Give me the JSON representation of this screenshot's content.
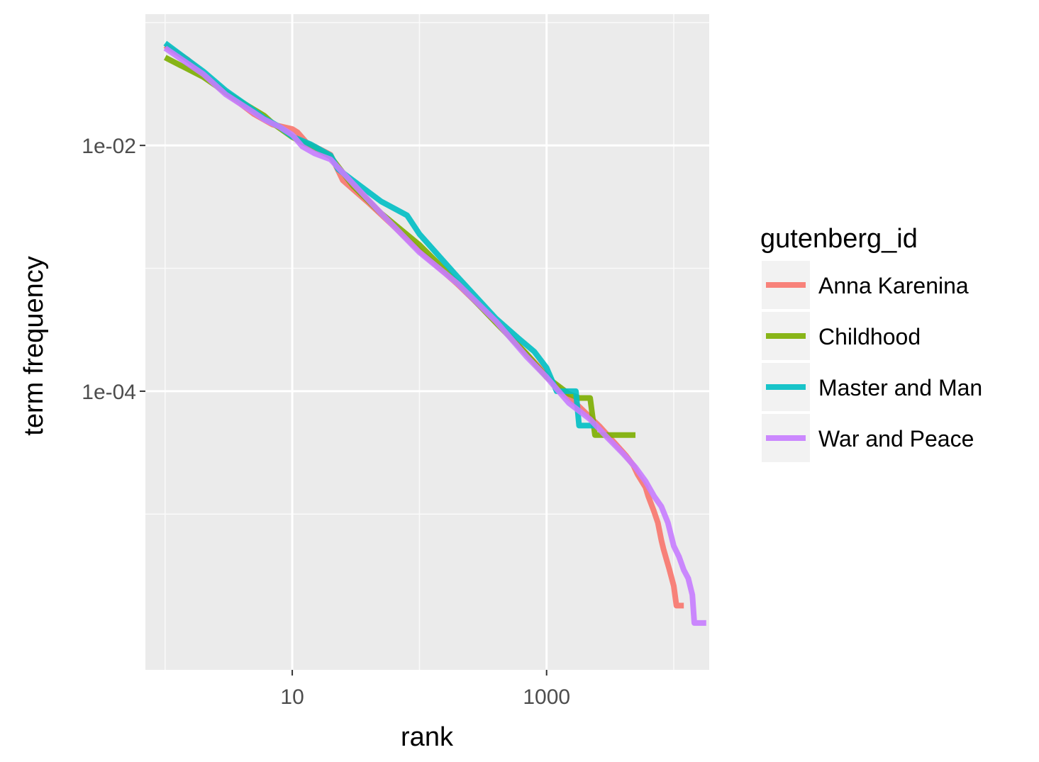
{
  "chart_data": {
    "type": "line",
    "title": "",
    "xlabel": "rank",
    "ylabel": "term frequency",
    "x_scale": "log10",
    "y_scale": "log10",
    "xlim": [
      0.7,
      19000
    ],
    "ylim": [
      5.4e-07,
      0.117
    ],
    "x_ticks": [
      {
        "value": 10,
        "label": "10"
      },
      {
        "value": 1000,
        "label": "1000"
      }
    ],
    "y_ticks": [
      {
        "value": 0.01,
        "label": "1e-02"
      },
      {
        "value": 0.0001,
        "label": "1e-04"
      }
    ],
    "x_minor": [
      1,
      100,
      10000
    ],
    "y_minor": [
      0.1,
      0.001,
      1e-05
    ],
    "grid": true,
    "background": "#ebebeb",
    "legend": {
      "title": "gutenberg_id",
      "position": "right",
      "entries": [
        "Anna Karenina",
        "Childhood",
        "Master and Man",
        "War and Peace"
      ]
    },
    "series": [
      {
        "name": "Anna Karenina",
        "color": "#f8766d",
        "points": [
          [
            1,
            0.065
          ],
          [
            1.5,
            0.05
          ],
          [
            2,
            0.038
          ],
          [
            3,
            0.027
          ],
          [
            5,
            0.018
          ],
          [
            7,
            0.0148
          ],
          [
            10,
            0.0136
          ],
          [
            11,
            0.0128
          ],
          [
            13,
            0.0105
          ],
          [
            15,
            0.0098
          ],
          [
            20,
            0.0084
          ],
          [
            25,
            0.0052
          ],
          [
            40,
            0.0034
          ],
          [
            60,
            0.0023
          ],
          [
            100,
            0.0014
          ],
          [
            200,
            0.00074
          ],
          [
            400,
            0.00037
          ],
          [
            700,
            0.0002
          ],
          [
            1000,
            0.000135
          ],
          [
            1300,
            0.0001
          ],
          [
            1800,
            7.5e-05
          ],
          [
            2600,
            5.2e-05
          ],
          [
            3500,
            3.7e-05
          ],
          [
            4200,
            3e-05
          ],
          [
            4800,
            2.5e-05
          ],
          [
            5200,
            2.1e-05
          ],
          [
            6000,
            1.65e-05
          ],
          [
            6300,
            1.4e-05
          ],
          [
            7000,
            1.05e-05
          ],
          [
            7500,
            8.5e-06
          ],
          [
            8000,
            6.1e-06
          ],
          [
            8300,
            5.2e-06
          ],
          [
            8800,
            4.2e-06
          ],
          [
            9200,
            3.6e-06
          ],
          [
            10000,
            2.6e-06
          ],
          [
            10500,
            1.8e-06
          ],
          [
            12000,
            1.8e-06
          ]
        ]
      },
      {
        "name": "Childhood",
        "color": "#7cae00",
        "points": [
          [
            1,
            0.052
          ],
          [
            2,
            0.036
          ],
          [
            3,
            0.027
          ],
          [
            5,
            0.0196
          ],
          [
            6,
            0.0175
          ],
          [
            7,
            0.0152
          ],
          [
            10,
            0.0117
          ],
          [
            12,
            0.0106
          ],
          [
            14,
            0.0099
          ],
          [
            20,
            0.0081
          ],
          [
            30,
            0.0047
          ],
          [
            50,
            0.0028
          ],
          [
            100,
            0.00155
          ],
          [
            200,
            0.00076
          ],
          [
            400,
            0.00036
          ],
          [
            700,
            0.0002
          ],
          [
            1000,
            0.00013
          ],
          [
            1500,
            9.5e-05
          ],
          [
            1800,
            8.8e-05
          ],
          [
            2200,
            8.8e-05
          ],
          [
            2400,
            4.4e-05
          ],
          [
            3000,
            4.4e-05
          ],
          [
            5000,
            4.4e-05
          ]
        ]
      },
      {
        "name": "Master and Man",
        "color": "#00bfc4",
        "points": [
          [
            1,
            0.068
          ],
          [
            2,
            0.04
          ],
          [
            3,
            0.028
          ],
          [
            5,
            0.0193
          ],
          [
            6,
            0.0167
          ],
          [
            8,
            0.0141
          ],
          [
            10,
            0.0118
          ],
          [
            14,
            0.0102
          ],
          [
            20,
            0.0083
          ],
          [
            23,
            0.0064
          ],
          [
            30,
            0.0052
          ],
          [
            50,
            0.0035
          ],
          [
            80,
            0.0027
          ],
          [
            100,
            0.0019
          ],
          [
            200,
            0.00085
          ],
          [
            400,
            0.00039
          ],
          [
            600,
            0.00027
          ],
          [
            800,
            0.00021
          ],
          [
            1000,
            0.000155
          ],
          [
            1200,
            0.0001
          ],
          [
            1700,
            0.0001
          ],
          [
            1800,
            5.25e-05
          ],
          [
            2400,
            5.25e-05
          ]
        ]
      },
      {
        "name": "War and Peace",
        "color": "#c77cff",
        "points": [
          [
            1,
            0.062
          ],
          [
            2,
            0.038
          ],
          [
            3,
            0.026
          ],
          [
            5,
            0.0185
          ],
          [
            6,
            0.0163
          ],
          [
            8,
            0.0141
          ],
          [
            10,
            0.0122
          ],
          [
            12,
            0.0098
          ],
          [
            15,
            0.0086
          ],
          [
            20,
            0.0077
          ],
          [
            30,
            0.0049
          ],
          [
            50,
            0.0028
          ],
          [
            100,
            0.00135
          ],
          [
            200,
            0.00075
          ],
          [
            400,
            0.00037
          ],
          [
            700,
            0.00019
          ],
          [
            1000,
            0.00013
          ],
          [
            1500,
            8e-05
          ],
          [
            2200,
            5.9e-05
          ],
          [
            3000,
            4.2e-05
          ],
          [
            4000,
            3.1e-05
          ],
          [
            5000,
            2.4e-05
          ],
          [
            6000,
            1.85e-05
          ],
          [
            7000,
            1.4e-05
          ],
          [
            8000,
            1.15e-05
          ],
          [
            9000,
            8.5e-06
          ],
          [
            10000,
            5.5e-06
          ],
          [
            11000,
            4.5e-06
          ],
          [
            12000,
            3.5e-06
          ],
          [
            13000,
            3e-06
          ],
          [
            14000,
            2.2e-06
          ],
          [
            14500,
            1.3e-06
          ],
          [
            18000,
            1.3e-06
          ]
        ]
      }
    ]
  }
}
